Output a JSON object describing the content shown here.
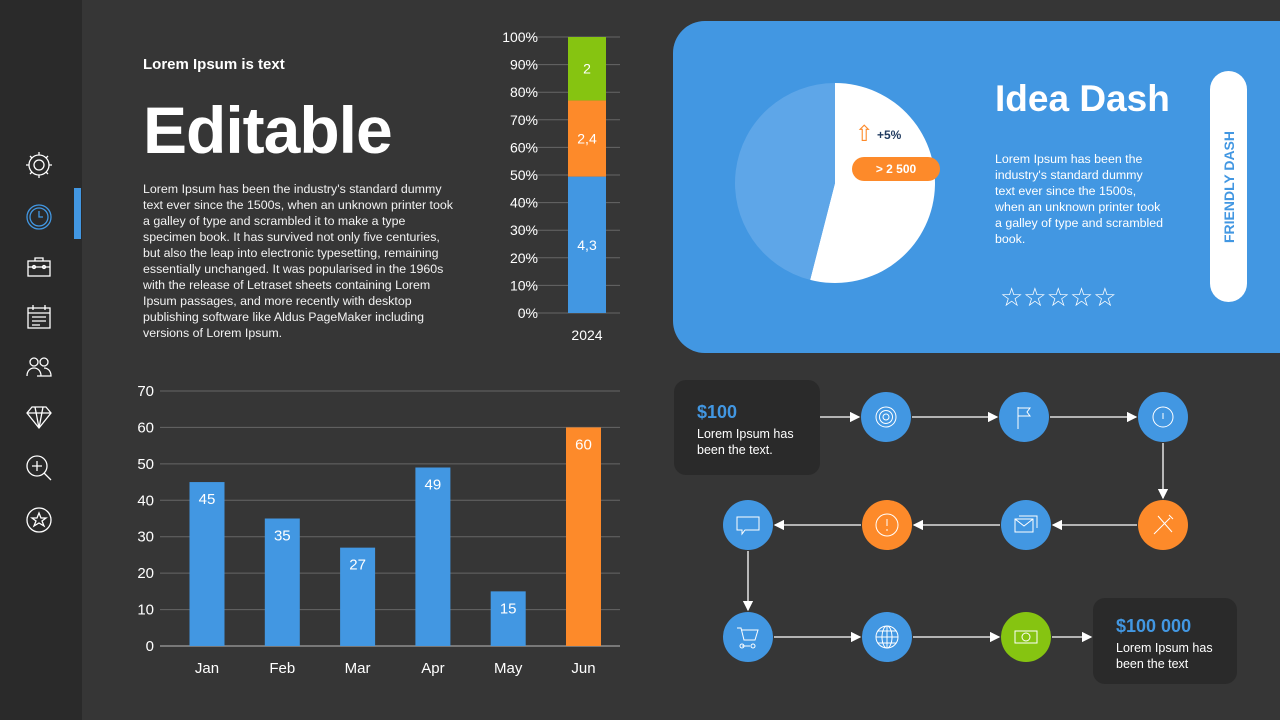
{
  "sidebar": {
    "items": [
      "gear-icon",
      "clock-icon",
      "toolbox-icon",
      "calendar-icon",
      "users-icon",
      "diamond-icon",
      "zoom-in-icon",
      "star-circle-icon"
    ],
    "active_index": 1
  },
  "header": {
    "kicker": "Lorem Ipsum is text",
    "title": "Editable",
    "body": "Lorem Ipsum has been the industry's standard dummy text ever since the 1500s, when an unknown printer took a galley of type and scrambled it to make a type specimen book. It has survived not only five centuries, but also the leap into electronic typesetting, remaining essentially unchanged. It was popularised in the 1960s with the release of Letraset sheets containing Lorem Ipsum passages, and more recently with desktop publishing software like Aldus PageMaker including versions of Lorem Ipsum."
  },
  "panel": {
    "title": "Idea Dash",
    "body": "Lorem Ipsum has been the industry's standard dummy text ever since the 1500s, when an unknown printer took a galley of type and scrambled book.",
    "pill": "FRIENDLY DASH",
    "stars": "☆☆☆☆☆",
    "change": "+5%",
    "badge": "> 2 500"
  },
  "flow": {
    "start": {
      "value": "$100",
      "text": "Lorem Ipsum has been the text."
    },
    "end": {
      "value": "$100 000",
      "text": "Lorem Ipsum has been the text"
    },
    "steps": [
      {
        "icon": "target-icon",
        "color": "#4297e2"
      },
      {
        "icon": "flag-icon",
        "color": "#4297e2"
      },
      {
        "icon": "timer-icon",
        "color": "#4297e2"
      },
      {
        "icon": "tools-icon",
        "color": "#fd8a2a"
      },
      {
        "icon": "mail-icon",
        "color": "#4297e2"
      },
      {
        "icon": "alert-icon",
        "color": "#fd8a2a"
      },
      {
        "icon": "chat-icon",
        "color": "#4297e2"
      },
      {
        "icon": "cart-icon",
        "color": "#4297e2"
      },
      {
        "icon": "globe-icon",
        "color": "#4297e2"
      },
      {
        "icon": "money-icon",
        "color": "#86c411"
      }
    ]
  },
  "colors": {
    "blue": "#4297e2",
    "orange": "#fd8a2a",
    "green": "#86c411",
    "bg": "#363636",
    "sidebar": "#2a2a2a"
  },
  "chart_data": [
    {
      "type": "bar",
      "stacked": true,
      "normalized": true,
      "categories": [
        "2024"
      ],
      "series": [
        {
          "values": [
            4.3
          ],
          "label": "4,3",
          "color": "#4297e2"
        },
        {
          "values": [
            2.4
          ],
          "label": "2,4",
          "color": "#fd8a2a"
        },
        {
          "values": [
            2
          ],
          "label": "2",
          "color": "#86c411"
        }
      ],
      "yticks": [
        "0%",
        "10%",
        "20%",
        "30%",
        "40%",
        "50%",
        "60%",
        "70%",
        "80%",
        "90%",
        "100%"
      ],
      "ylim": [
        0,
        100
      ],
      "grid": true
    },
    {
      "type": "bar",
      "categories": [
        "Jan",
        "Feb",
        "Mar",
        "Apr",
        "May",
        "Jun"
      ],
      "values": [
        45,
        35,
        27,
        49,
        15,
        60
      ],
      "colors": [
        "#4297e2",
        "#4297e2",
        "#4297e2",
        "#4297e2",
        "#4297e2",
        "#fd8a2a"
      ],
      "yticks": [
        0,
        10,
        20,
        30,
        40,
        50,
        60,
        70
      ],
      "ylim": [
        0,
        70
      ],
      "grid": true
    },
    {
      "type": "pie",
      "values": [
        54,
        46
      ],
      "colors": [
        "#ffffff",
        "#5ea6e8"
      ]
    }
  ]
}
